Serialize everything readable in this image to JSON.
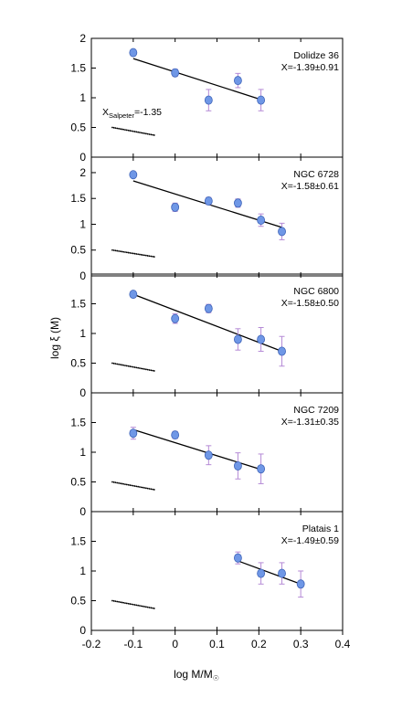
{
  "chart_data": {
    "type": "scatter",
    "xlabel": "log M/M",
    "xlabel_sub": "☉",
    "ylabel": "log ξ (M)",
    "xlim": [
      -0.2,
      0.4
    ],
    "x_ticks": [
      "-0.2",
      "-0.1",
      "0",
      "0.1",
      "0.2",
      "0.3",
      "0.4"
    ],
    "salpeter_label_main": "X",
    "salpeter_label_sub": "Salpeter",
    "salpeter_label_value": "=-1.35",
    "colors": {
      "points": "#6f97e6",
      "point_edge": "#3e63b8",
      "error_bars": "#b58ad6",
      "fit": "#000000"
    },
    "panels": [
      {
        "name": "Dolidze 36",
        "slope_label": "X=-1.39±0.91",
        "ylim": [
          0,
          2
        ],
        "y_ticks": [
          "0",
          "0.5",
          "1",
          "1.5",
          "2"
        ],
        "points": [
          {
            "x": -0.1,
            "y": 1.76,
            "err": 0.05
          },
          {
            "x": 0.0,
            "y": 1.42,
            "err": 0.06
          },
          {
            "x": 0.08,
            "y": 0.96,
            "err": 0.18
          },
          {
            "x": 0.15,
            "y": 1.29,
            "err": 0.12
          },
          {
            "x": 0.205,
            "y": 0.96,
            "err": 0.18
          }
        ],
        "fit": {
          "x": [
            -0.1,
            0.205
          ],
          "y": [
            1.66,
            0.97
          ]
        },
        "salpeter": {
          "x": [
            -0.15,
            -0.05
          ],
          "y": [
            0.5,
            0.37
          ]
        }
      },
      {
        "name": "NGC 6728",
        "slope_label": "X=-1.58±0.61",
        "ylim": [
          0,
          2.3
        ],
        "y_ticks": [
          "0",
          "0.5",
          "1",
          "1.5",
          "2"
        ],
        "points": [
          {
            "x": -0.1,
            "y": 1.96,
            "err": 0.05
          },
          {
            "x": 0.0,
            "y": 1.33,
            "err": 0.08
          },
          {
            "x": 0.08,
            "y": 1.45,
            "err": 0.07
          },
          {
            "x": 0.15,
            "y": 1.41,
            "err": 0.08
          },
          {
            "x": 0.205,
            "y": 1.08,
            "err": 0.12
          },
          {
            "x": 0.255,
            "y": 0.86,
            "err": 0.16
          }
        ],
        "fit": {
          "x": [
            -0.1,
            0.255
          ],
          "y": [
            1.84,
            0.94
          ]
        },
        "salpeter": {
          "x": [
            -0.15,
            -0.05
          ],
          "y": [
            0.5,
            0.37
          ]
        }
      },
      {
        "name": "NGC 6800",
        "slope_label": "X=-1.58±0.50",
        "ylim": [
          0,
          2
        ],
        "y_ticks": [
          "0",
          "0.5",
          "1",
          "1.5"
        ],
        "points": [
          {
            "x": -0.1,
            "y": 1.66,
            "err": 0.05
          },
          {
            "x": 0.0,
            "y": 1.25,
            "err": 0.08
          },
          {
            "x": 0.08,
            "y": 1.42,
            "err": 0.07
          },
          {
            "x": 0.15,
            "y": 0.9,
            "err": 0.18
          },
          {
            "x": 0.205,
            "y": 0.9,
            "err": 0.2
          },
          {
            "x": 0.255,
            "y": 0.7,
            "err": 0.25
          }
        ],
        "fit": {
          "x": [
            -0.1,
            0.255
          ],
          "y": [
            1.66,
            0.7
          ]
        },
        "salpeter": {
          "x": [
            -0.15,
            -0.05
          ],
          "y": [
            0.5,
            0.37
          ]
        }
      },
      {
        "name": "NGC 7209",
        "slope_label": "X=-1.31±0.35",
        "ylim": [
          0,
          2
        ],
        "y_ticks": [
          "0",
          "0.5",
          "1",
          "1.5"
        ],
        "points": [
          {
            "x": -0.1,
            "y": 1.32,
            "err": 0.1
          },
          {
            "x": 0.0,
            "y": 1.29,
            "err": 0.06
          },
          {
            "x": 0.08,
            "y": 0.95,
            "err": 0.16
          },
          {
            "x": 0.15,
            "y": 0.77,
            "err": 0.22
          },
          {
            "x": 0.205,
            "y": 0.72,
            "err": 0.25
          }
        ],
        "fit": {
          "x": [
            -0.1,
            0.205
          ],
          "y": [
            1.38,
            0.71
          ]
        },
        "salpeter": {
          "x": [
            -0.15,
            -0.05
          ],
          "y": [
            0.5,
            0.37
          ]
        }
      },
      {
        "name": "Platais 1",
        "slope_label": "X=-1.49±0.59",
        "ylim": [
          0,
          2
        ],
        "y_ticks": [
          "0",
          "0.5",
          "1",
          "1.5"
        ],
        "points": [
          {
            "x": 0.15,
            "y": 1.22,
            "err": 0.1
          },
          {
            "x": 0.205,
            "y": 0.96,
            "err": 0.18
          },
          {
            "x": 0.255,
            "y": 0.96,
            "err": 0.18
          },
          {
            "x": 0.3,
            "y": 0.78,
            "err": 0.22
          }
        ],
        "fit": {
          "x": [
            0.15,
            0.3
          ],
          "y": [
            1.17,
            0.78
          ]
        },
        "salpeter": {
          "x": [
            -0.15,
            -0.05
          ],
          "y": [
            0.5,
            0.37
          ]
        }
      }
    ]
  }
}
